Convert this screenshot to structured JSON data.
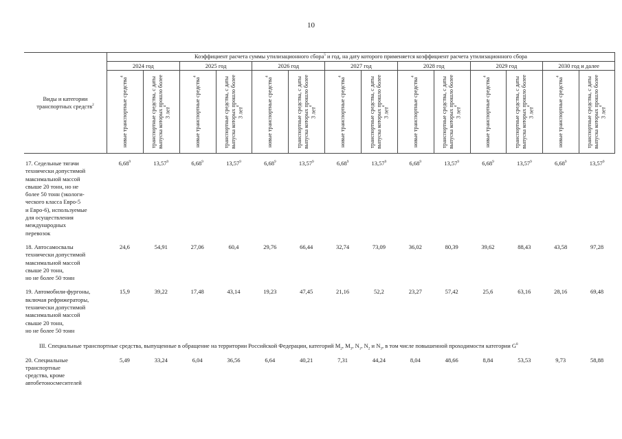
{
  "page_number": "10",
  "table": {
    "title": "Коэффициент расчета суммы утилизационного сбора",
    "title_sup": "5",
    "title_rest": " и год, на дату которого применяется коэффициент расчета утилизационного сбора",
    "stub_label": "Виды и категории транспортных средств",
    "stub_sup": "2",
    "years": [
      "2024 год",
      "2025 год",
      "2026 год",
      "2027 год",
      "2028 год",
      "2029 год",
      "2030 год и далее"
    ],
    "col_new": "новые транспортные средства",
    "col_new_sup": "4",
    "col_old": "транспортные средства, с даты выпуска которых прошло более 3 лет",
    "col_old_sup": "4",
    "rows": [
      {
        "type": "data",
        "label": "17. Седельные тягачи\nтехнически допустимой\nмаксимальной массой\nсвыше 20 тонн, но не\nболее 50 тонн (экологи-\nческого класса Евро-5\nи Евро-6), используемые\nдля осуществления\nмеждународных\nперевозок",
        "values": [
          "6,68|9",
          "13,57|9",
          "6,68|9",
          "13,57|9",
          "6,68|9",
          "13,57|9",
          "6,68|9",
          "13,57|9",
          "6,68|9",
          "13,57|9",
          "6,68|9",
          "13,57|9",
          "6,68|9",
          "13,57|9"
        ]
      },
      {
        "type": "data",
        "label": "18. Автосамосвалы\nтехнически допустимой\nмаксимальной массой\nсвыше 20 тонн,\nно не более 50 тонн",
        "values": [
          "24,6",
          "54,91",
          "27,06",
          "60,4",
          "29,76",
          "66,44",
          "32,74",
          "73,09",
          "36,02",
          "80,39",
          "39,62",
          "88,43",
          "43,58",
          "97,28"
        ]
      },
      {
        "type": "data",
        "label": "19. Автомобили-фургоны,\nвключая рефрижераторы,\nтехнически допустимой\nмаксимальной массой\nсвыше 20 тонн,\nно не более 50 тонн",
        "values": [
          "15,9",
          "39,22",
          "17,48",
          "43,14",
          "19,23",
          "47,45",
          "21,16",
          "52,2",
          "23,27",
          "57,42",
          "25,6",
          "63,16",
          "28,16",
          "69,48"
        ]
      },
      {
        "type": "section",
        "segments": [
          {
            "text": "III. Специальные транспортные средства, выпущенные в обращение на территории Российской Федерации, категорий M"
          },
          {
            "sub": "2"
          },
          {
            "text": ", M"
          },
          {
            "sub": "3"
          },
          {
            "text": ", N"
          },
          {
            "sub": "1"
          },
          {
            "text": ", N"
          },
          {
            "sub": "2"
          },
          {
            "text": " и N"
          },
          {
            "sub": "3"
          },
          {
            "text": ", в том числе повышенной проходимости категории G"
          },
          {
            "sup": "8"
          }
        ]
      },
      {
        "type": "data",
        "label": "20. Специальные\nтранспортные\nсредства, кроме\nавтобетоносмесителей",
        "values": [
          "5,49",
          "33,24",
          "6,04",
          "36,56",
          "6,64",
          "40,21",
          "7,31",
          "44,24",
          "8,04",
          "48,66",
          "8,84",
          "53,53",
          "9,73",
          "58,88"
        ]
      }
    ]
  }
}
